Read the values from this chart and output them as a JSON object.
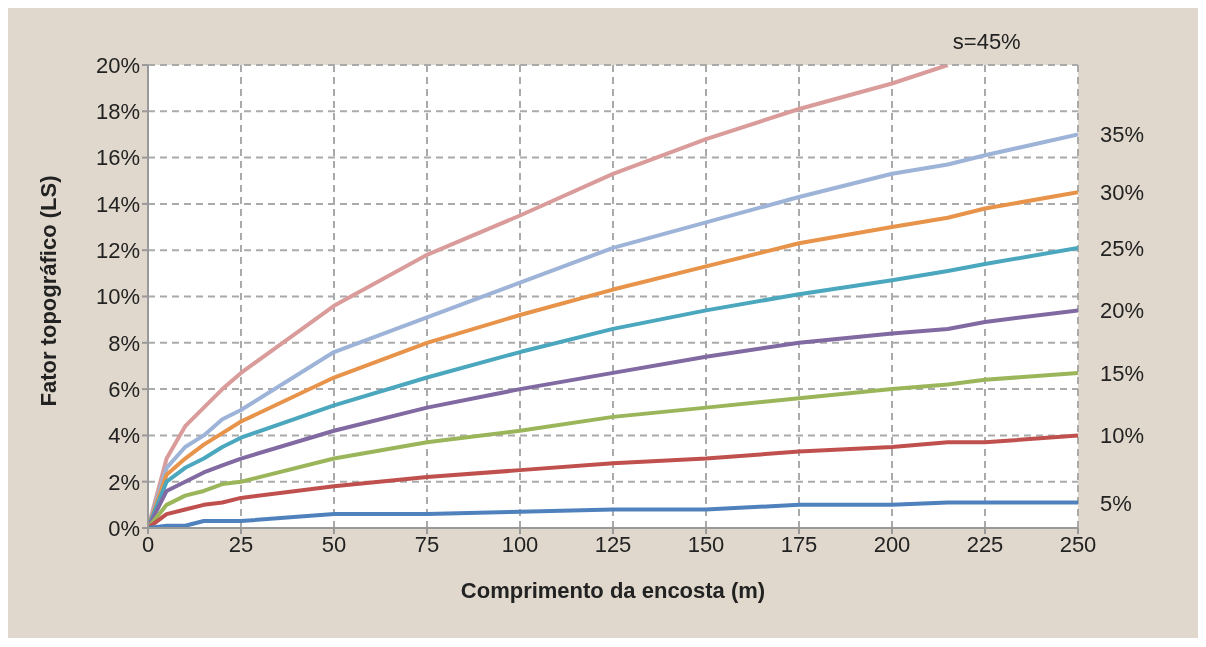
{
  "chart_data": {
    "type": "line",
    "xlabel": "Comprimento da encosta (m)",
    "ylabel": "Fator topográfico (LS)",
    "x": [
      0,
      5,
      10,
      15,
      20,
      25,
      50,
      75,
      100,
      125,
      150,
      175,
      200,
      215,
      225,
      250
    ],
    "series": [
      {
        "name": "s=45%",
        "color": "#d99c9a",
        "values": [
          0,
          3.0,
          4.4,
          5.2,
          6.0,
          6.7,
          9.6,
          11.8,
          13.5,
          15.3,
          16.8,
          18.1,
          19.2,
          20.0,
          null,
          null
        ]
      },
      {
        "name": "35%",
        "color": "#9db3d7",
        "values": [
          0,
          2.6,
          3.5,
          4.0,
          4.7,
          5.1,
          7.6,
          9.1,
          10.6,
          12.1,
          13.2,
          14.3,
          15.3,
          15.7,
          16.1,
          17.0
        ]
      },
      {
        "name": "30%",
        "color": "#e8934a",
        "values": [
          0,
          2.3,
          3.0,
          3.6,
          4.1,
          4.6,
          6.5,
          8.0,
          9.2,
          10.3,
          11.3,
          12.3,
          13.0,
          13.4,
          13.8,
          14.5
        ]
      },
      {
        "name": "25%",
        "color": "#4aa7bd",
        "values": [
          0,
          2.0,
          2.6,
          3.0,
          3.5,
          3.9,
          5.3,
          6.5,
          7.6,
          8.6,
          9.4,
          10.1,
          10.7,
          11.1,
          11.4,
          12.1
        ]
      },
      {
        "name": "20%",
        "color": "#8169a2",
        "values": [
          0,
          1.6,
          2.0,
          2.4,
          2.7,
          3.0,
          4.2,
          5.2,
          6.0,
          6.7,
          7.4,
          8.0,
          8.4,
          8.6,
          8.9,
          9.4
        ]
      },
      {
        "name": "15%",
        "color": "#9bb65a",
        "values": [
          0,
          1.0,
          1.4,
          1.6,
          1.9,
          2.0,
          3.0,
          3.7,
          4.2,
          4.8,
          5.2,
          5.6,
          6.0,
          6.2,
          6.4,
          6.7
        ]
      },
      {
        "name": "10%",
        "color": "#bf504d",
        "values": [
          0,
          0.6,
          0.8,
          1.0,
          1.1,
          1.3,
          1.8,
          2.2,
          2.5,
          2.8,
          3.0,
          3.3,
          3.5,
          3.7,
          3.7,
          4.0
        ]
      },
      {
        "name": "5%",
        "color": "#4f81bd",
        "values": [
          0,
          0.1,
          0.1,
          0.3,
          0.3,
          0.3,
          0.6,
          0.6,
          0.7,
          0.8,
          0.8,
          1.0,
          1.0,
          1.1,
          1.1,
          1.1
        ]
      }
    ],
    "xlim": [
      0,
      250
    ],
    "xticks": [
      0,
      25,
      50,
      75,
      100,
      125,
      150,
      175,
      200,
      225,
      250
    ],
    "ylim": [
      0,
      20
    ],
    "yticks": [
      {
        "value": 0,
        "label": "0%"
      },
      {
        "value": 2,
        "label": "2%"
      },
      {
        "value": 4,
        "label": "4%"
      },
      {
        "value": 6,
        "label": "6%"
      },
      {
        "value": 8,
        "label": "8%"
      },
      {
        "value": 10,
        "label": "10%"
      },
      {
        "value": 12,
        "label": "12%"
      },
      {
        "value": 14,
        "label": "14%"
      },
      {
        "value": 16,
        "label": "16%"
      },
      {
        "value": 18,
        "label": "18%"
      },
      {
        "value": 20,
        "label": "20%"
      }
    ],
    "grid": true,
    "legend": false,
    "marker": "none",
    "line_style": "solid"
  }
}
